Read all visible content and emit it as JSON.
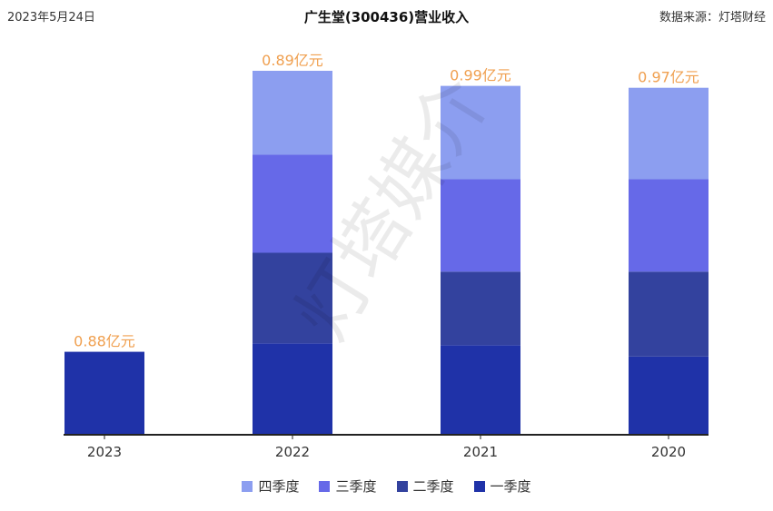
{
  "header": {
    "date": "2023年5月24日",
    "title": "广生堂(300436)营业收入",
    "source": "数据来源：灯塔财经"
  },
  "watermark": "灯塔媒介",
  "colors": {
    "q1": "#1f32a8",
    "q2": "#33429e",
    "q3": "#6669e8",
    "q4": "#8c9ef0",
    "label": "#f0a050",
    "axis": "#222222"
  },
  "chart_data": {
    "type": "bar",
    "stacked": true,
    "categories": [
      "2023",
      "2022",
      "2021",
      "2020"
    ],
    "unit": "亿元",
    "series": [
      {
        "name": "一季度",
        "key": "q1",
        "values": [
          0.88,
          0.97,
          0.95,
          0.83
        ],
        "labels": [
          "0.88亿元",
          "0.97亿元",
          "0.95亿元",
          "0.83亿元"
        ]
      },
      {
        "name": "二季度",
        "key": "q2",
        "values": [
          null,
          0.96,
          0.78,
          0.9
        ],
        "labels": [
          "",
          "0.96亿元",
          "0.78亿元",
          "0.9亿元"
        ]
      },
      {
        "name": "三季度",
        "key": "q3",
        "values": [
          null,
          1.04,
          0.98,
          0.98
        ],
        "labels": [
          "",
          "1.04亿元",
          "0.98亿元",
          "0.98亿元"
        ]
      },
      {
        "name": "四季度",
        "key": "q4",
        "values": [
          null,
          0.89,
          0.99,
          0.97
        ],
        "labels": [
          "",
          "0.89亿元",
          "0.99亿元",
          "0.97亿元"
        ]
      }
    ],
    "legend_order": [
      "四季度",
      "三季度",
      "二季度",
      "一季度"
    ],
    "legend_position": "bottom-center",
    "grid": false
  }
}
